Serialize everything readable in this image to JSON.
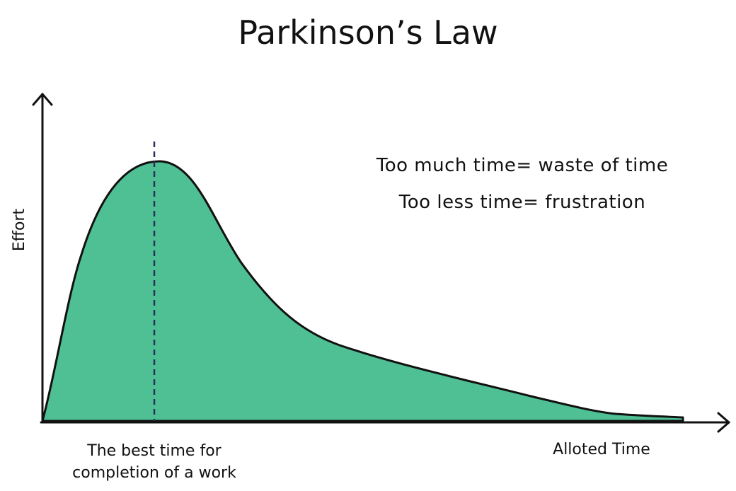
{
  "title": "Parkinson’s Law",
  "y_axis_label": "Effort",
  "x_axis_label": "Alloted Time",
  "marker_label": [
    "The best time for",
    "completion of a work"
  ],
  "notes": [
    "Too much time= waste of time",
    "Too less time= frustration"
  ]
}
